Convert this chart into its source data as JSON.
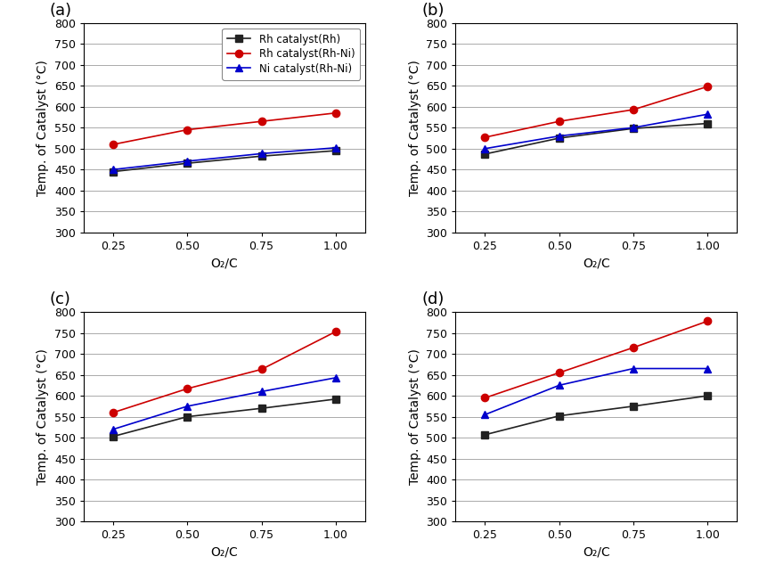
{
  "x": [
    0.25,
    0.5,
    0.75,
    1.0
  ],
  "panels": [
    {
      "label": "(a)",
      "series": [
        {
          "name": "Rh catalyst(Rh)",
          "color": "#222222",
          "marker": "s",
          "linestyle": "-",
          "y": [
            445,
            465,
            482,
            495
          ]
        },
        {
          "name": "Rh catalyst(Rh-Ni)",
          "color": "#cc0000",
          "marker": "o",
          "linestyle": "-",
          "y": [
            510,
            545,
            565,
            585
          ]
        },
        {
          "name": "Ni catalyst(Rh-Ni)",
          "color": "#0000cc",
          "marker": "^",
          "linestyle": "-",
          "y": [
            450,
            470,
            488,
            502
          ]
        }
      ],
      "ylim": [
        300,
        800
      ],
      "yticks": [
        300,
        350,
        400,
        450,
        500,
        550,
        600,
        650,
        700,
        750,
        800
      ],
      "show_legend": true
    },
    {
      "label": "(b)",
      "series": [
        {
          "name": "Rh catalyst(Rh)",
          "color": "#222222",
          "marker": "s",
          "linestyle": "-",
          "y": [
            487,
            525,
            548,
            560
          ]
        },
        {
          "name": "Rh catalyst(Rh-Ni)",
          "color": "#cc0000",
          "marker": "o",
          "linestyle": "-",
          "y": [
            527,
            565,
            593,
            648
          ]
        },
        {
          "name": "Ni catalyst(Rh-Ni)",
          "color": "#0000cc",
          "marker": "^",
          "linestyle": "-",
          "y": [
            500,
            530,
            550,
            582
          ]
        }
      ],
      "ylim": [
        300,
        800
      ],
      "yticks": [
        300,
        350,
        400,
        450,
        500,
        550,
        600,
        650,
        700,
        750,
        800
      ],
      "show_legend": false
    },
    {
      "label": "(c)",
      "series": [
        {
          "name": "Rh catalyst(Rh)",
          "color": "#222222",
          "marker": "s",
          "linestyle": "-",
          "y": [
            503,
            550,
            570,
            592
          ]
        },
        {
          "name": "Rh catalyst(Rh-Ni)",
          "color": "#cc0000",
          "marker": "o",
          "linestyle": "-",
          "y": [
            560,
            617,
            663,
            753
          ]
        },
        {
          "name": "Ni catalyst(Rh-Ni)",
          "color": "#0000cc",
          "marker": "^",
          "linestyle": "-",
          "y": [
            520,
            575,
            610,
            643
          ]
        }
      ],
      "ylim": [
        300,
        800
      ],
      "yticks": [
        300,
        350,
        400,
        450,
        500,
        550,
        600,
        650,
        700,
        750,
        800
      ],
      "show_legend": false
    },
    {
      "label": "(d)",
      "series": [
        {
          "name": "Rh catalyst(Rh)",
          "color": "#222222",
          "marker": "s",
          "linestyle": "-",
          "y": [
            507,
            552,
            575,
            600
          ]
        },
        {
          "name": "Rh catalyst(Rh-Ni)",
          "color": "#cc0000",
          "marker": "o",
          "linestyle": "-",
          "y": [
            595,
            655,
            715,
            778
          ]
        },
        {
          "name": "Ni catalyst(Rh-Ni)",
          "color": "#0000cc",
          "marker": "^",
          "linestyle": "-",
          "y": [
            555,
            625,
            665,
            665
          ]
        }
      ],
      "ylim": [
        300,
        800
      ],
      "yticks": [
        300,
        350,
        400,
        450,
        500,
        550,
        600,
        650,
        700,
        750,
        800
      ],
      "show_legend": false
    }
  ],
  "xlabel": "O₂/C",
  "ylabel": "Temp. of Catalyst (°C)",
  "xticks": [
    0.25,
    0.5,
    0.75,
    1.0
  ],
  "xtick_labels": [
    "0.25",
    "0.50",
    "0.75",
    "1.00"
  ],
  "marker_size": 6,
  "linewidth": 1.2,
  "grid_color": "#aaaaaa",
  "legend_entries": [
    {
      "name": "Rh catalyst(Rh)",
      "color": "#222222",
      "marker": "s"
    },
    {
      "name": "Rh catalyst(Rh-Ni)",
      "color": "#cc0000",
      "marker": "o"
    },
    {
      "name": "Ni catalyst(Rh-Ni)",
      "color": "#0000cc",
      "marker": "^"
    }
  ],
  "background_color": "#ffffff",
  "panel_label_fontsize": 13,
  "tick_fontsize": 9,
  "axis_label_fontsize": 10,
  "legend_fontsize": 8.5
}
